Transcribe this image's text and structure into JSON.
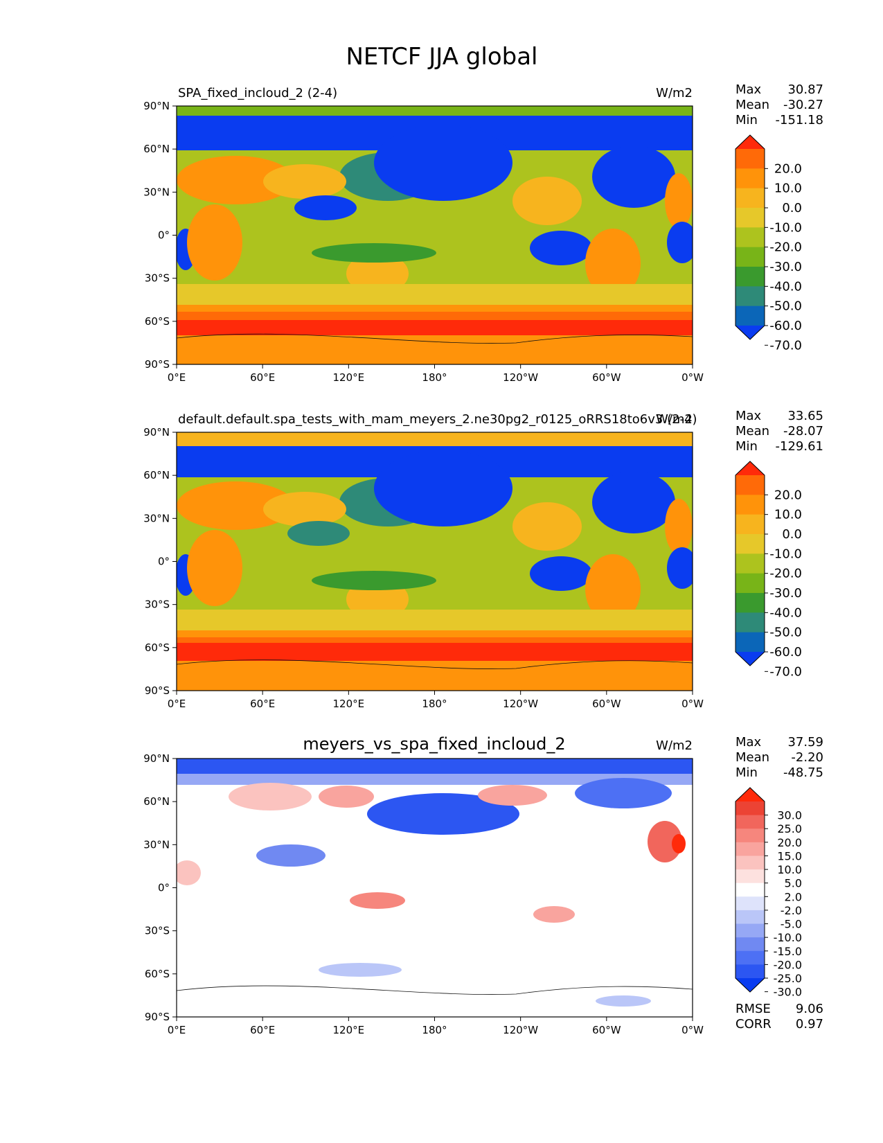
{
  "figure": {
    "title": "NETCF JJA global"
  },
  "colors": {
    "main_levels": [
      "#0a3cf0",
      "#0b66b8",
      "#2e8a78",
      "#3a9a2e",
      "#78b418",
      "#adc31e",
      "#e6c82a",
      "#f7b41e",
      "#ff930a",
      "#ff6a08",
      "#ff2a0a"
    ],
    "diff_levels": [
      "#0a3cf0",
      "#2c56f2",
      "#4d70f4",
      "#7089f2",
      "#96a8f5",
      "#bac6f8",
      "#dee3fb",
      "#ffffff",
      "#fde1df",
      "#fbc3bf",
      "#f9a49e",
      "#f6867d",
      "#f1665c",
      "#ec4334",
      "#ff2a0a"
    ]
  },
  "chart_data": [
    {
      "type": "heatmap",
      "title": "SPA_fixed_incloud_2 (2-4)",
      "units": "W/m2",
      "x_ticks": [
        "0°E",
        "60°E",
        "120°E",
        "180°",
        "120°W",
        "60°W",
        "0°W"
      ],
      "y_ticks": [
        "90°N",
        "60°N",
        "30°N",
        "0°",
        "30°S",
        "60°S",
        "90°S"
      ],
      "stats": {
        "max_label": "Max",
        "max": "30.87",
        "mean_label": "Mean",
        "mean": "-30.27",
        "min_label": "Min",
        "min": "-151.18"
      },
      "colorbar_labels": [
        "20.0",
        "10.0",
        "0.0",
        "-10.0",
        "-20.0",
        "-30.0",
        "-40.0",
        "-50.0",
        "-60.0",
        "-70.0"
      ]
    },
    {
      "type": "heatmap",
      "title": "default.default.spa_tests_with_mam_meyers_2.ne30pg2_r0125_oRRS18to6v3 (2-4)",
      "units": "W/m2",
      "x_ticks": [
        "0°E",
        "60°E",
        "120°E",
        "180°",
        "120°W",
        "60°W",
        "0°W"
      ],
      "y_ticks": [
        "90°N",
        "60°N",
        "30°N",
        "0°",
        "30°S",
        "60°S",
        "90°S"
      ],
      "stats": {
        "max_label": "Max",
        "max": "33.65",
        "mean_label": "Mean",
        "mean": "-28.07",
        "min_label": "Min",
        "min": "-129.61"
      },
      "colorbar_labels": [
        "20.0",
        "10.0",
        "0.0",
        "-10.0",
        "-20.0",
        "-30.0",
        "-40.0",
        "-50.0",
        "-60.0",
        "-70.0"
      ]
    },
    {
      "type": "heatmap",
      "title": "meyers_vs_spa_fixed_incloud_2",
      "units": "W/m2",
      "x_ticks": [
        "0°E",
        "60°E",
        "120°E",
        "180°",
        "120°W",
        "60°W",
        "0°W"
      ],
      "y_ticks": [
        "90°N",
        "60°N",
        "30°N",
        "0°",
        "30°S",
        "60°S",
        "90°S"
      ],
      "stats": {
        "max_label": "Max",
        "max": "37.59",
        "mean_label": "Mean",
        "mean": "-2.20",
        "min_label": "Min",
        "min": "-48.75"
      },
      "colorbar_labels": [
        "30.0",
        "25.0",
        "20.0",
        "15.0",
        "10.0",
        "5.0",
        "2.0",
        "-2.0",
        "-5.0",
        "-10.0",
        "-15.0",
        "-20.0",
        "-25.0",
        "-30.0"
      ],
      "metrics": {
        "rmse_label": "RMSE",
        "rmse": "9.06",
        "corr_label": "CORR",
        "corr": "0.97"
      }
    }
  ]
}
